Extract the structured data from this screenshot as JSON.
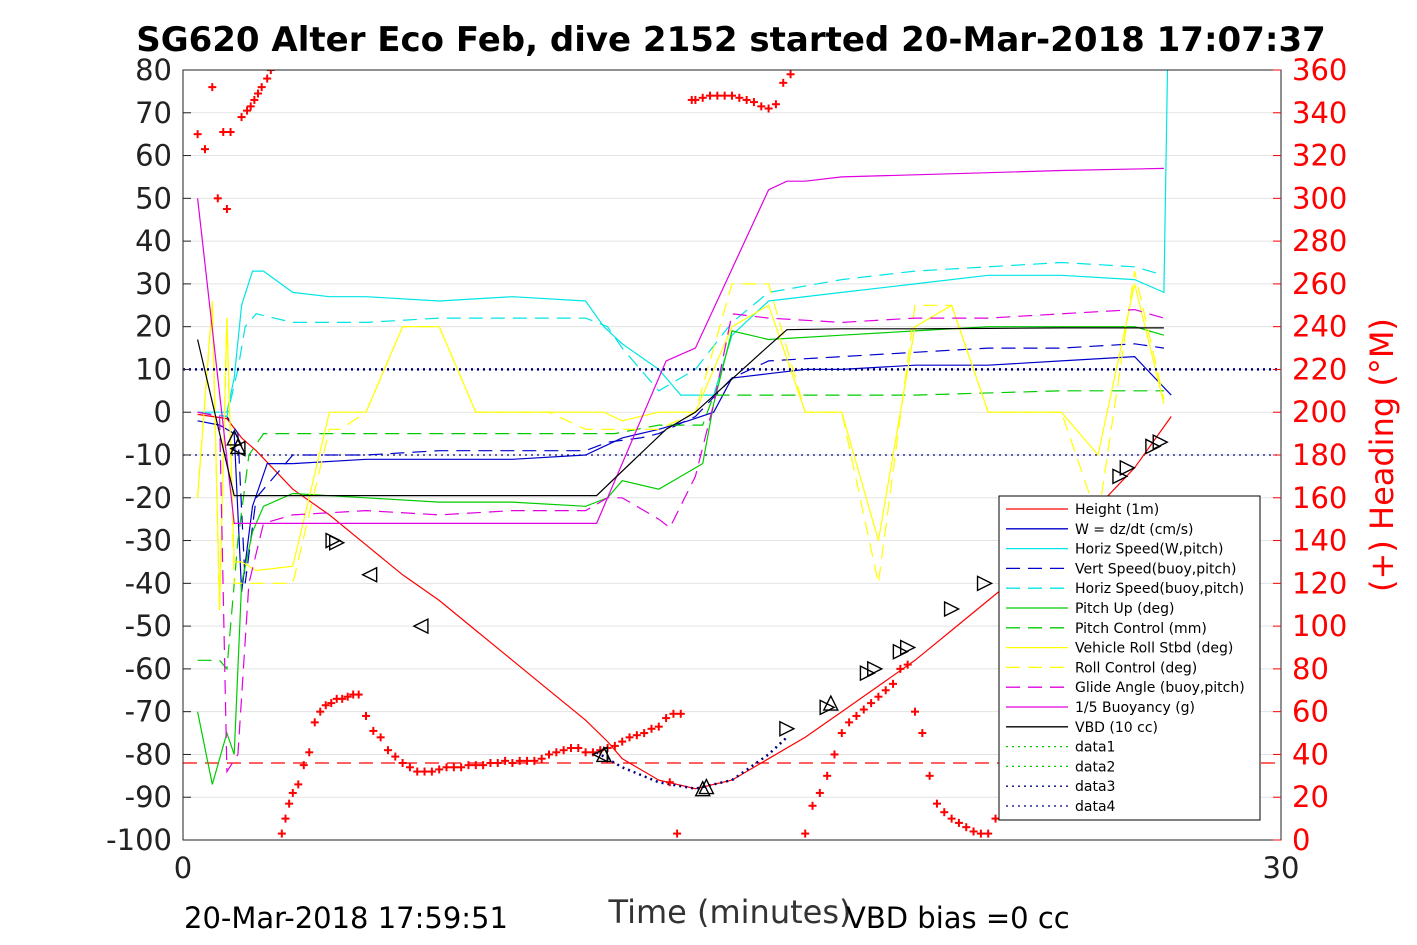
{
  "chart_data": {
    "type": "line",
    "title": "SG620 Alter Eco Feb, dive 2152 started 20-Mar-2018 17:07:37",
    "xlabel": "Time (minutes)",
    "ylabel": "",
    "y2label": "(+) Heading (°M)",
    "xlim": [
      0,
      30
    ],
    "ylim": [
      -100,
      80
    ],
    "y2lim": [
      0,
      360
    ],
    "x_ticks": [
      "0",
      "30"
    ],
    "y_ticks": [
      "80",
      "70",
      "60",
      "50",
      "40",
      "30",
      "20",
      "10",
      "0",
      "-10",
      "-20",
      "-30",
      "-40",
      "-50",
      "-60",
      "-70",
      "-80",
      "-90",
      "-100"
    ],
    "y2_ticks": [
      "360",
      "340",
      "320",
      "300",
      "280",
      "260",
      "240",
      "220",
      "200",
      "180",
      "160",
      "140",
      "120",
      "100",
      "80",
      "60",
      "40",
      "20",
      "0"
    ],
    "grid": "y-major",
    "legend_position": "lower-right",
    "footer_left": "20-Mar-2018 17:59:51",
    "footer_right": "VBD bias =0 cc",
    "colors": {
      "red": "#ff0000",
      "blue": "#0000cc",
      "cyan": "#00e5e5",
      "green": "#00cc00",
      "yellow": "#ffff00",
      "magenta": "#e000e0",
      "black": "#000000"
    },
    "series": [
      {
        "name": "Height (1m)",
        "color": "#ff0000",
        "style": "solid",
        "x": [
          0.4,
          1.2,
          1.6,
          2.0,
          3.0,
          4.0,
          5.0,
          6.0,
          7.0,
          8.0,
          9.0,
          10.0,
          11.0,
          11.6,
          12.0,
          13.0,
          14.0,
          15.0,
          16.0,
          17.0,
          18.0,
          19.0,
          20.0,
          21.0,
          22.0,
          23.0,
          24.0,
          25.0,
          26.0,
          27.0
        ],
        "y": [
          -0.5,
          -1.5,
          -6,
          -9,
          -18,
          -24,
          -31,
          -38,
          -44,
          -51,
          -58,
          -65,
          -72,
          -77,
          -81,
          -86,
          -88,
          -86,
          -81,
          -76,
          -70,
          -64,
          -58,
          -51,
          -44,
          -37,
          -30,
          -22,
          -13,
          -1
        ]
      },
      {
        "name": "W = dz/dt (cm/s)",
        "color": "#0000cc",
        "style": "solid",
        "x": [
          0.4,
          1.0,
          1.4,
          1.6,
          1.9,
          2.3,
          3.0,
          5.0,
          7.0,
          9.0,
          11.0,
          11.5,
          12.0,
          13.0,
          13.8,
          14.5,
          15.0,
          16.0,
          17.0,
          18.0,
          20.0,
          22.0,
          24.0,
          26.0,
          27.0
        ],
        "y": [
          -2,
          -3,
          -5,
          -42,
          -22,
          -12,
          -12,
          -11,
          -11,
          -11,
          -10,
          -8,
          -6,
          -4,
          -2,
          0,
          8,
          9,
          10,
          10,
          11,
          11,
          12,
          13,
          4
        ]
      },
      {
        "name": "Horiz Speed(W,pitch)",
        "color": "#00e5e5",
        "style": "solid",
        "x": [
          0.4,
          1.2,
          1.4,
          1.6,
          1.9,
          2.2,
          3.0,
          4.0,
          5.0,
          7.0,
          9.0,
          11.0,
          11.5,
          12.0,
          13.0,
          13.6,
          14.5,
          15.0,
          16.0,
          18.0,
          20.0,
          22.0,
          24.0,
          26.0,
          26.8,
          26.9
        ],
        "y": [
          0,
          0,
          8,
          25,
          33,
          33,
          28,
          27,
          27,
          26,
          27,
          26,
          20,
          16,
          10,
          4,
          4,
          18,
          26,
          28,
          30,
          32,
          32,
          31,
          28,
          80
        ]
      },
      {
        "name": "Vert Speed(buoy,pitch)",
        "color": "#0000cc",
        "style": "dashed",
        "x": [
          0.4,
          1.2,
          1.5,
          1.7,
          2.0,
          3.0,
          5.0,
          7.0,
          9.0,
          11.0,
          11.6,
          12.5,
          13.0,
          14.0,
          15.0,
          16.0,
          18.0,
          20.0,
          22.0,
          24.0,
          26.0,
          26.8
        ],
        "y": [
          0,
          -1,
          -5,
          -40,
          -20,
          -10,
          -10,
          -9,
          -9,
          -9,
          -7,
          -6,
          -5,
          -1,
          8,
          12,
          13,
          14,
          15,
          15,
          16,
          15
        ]
      },
      {
        "name": "Horiz Speed(buoy,pitch)",
        "color": "#00e5e5",
        "style": "dashed",
        "x": [
          0.4,
          1.2,
          1.5,
          1.7,
          2.0,
          3.0,
          5.0,
          7.0,
          9.0,
          11.0,
          11.6,
          12.0,
          13.0,
          14.0,
          15.0,
          16.0,
          18.0,
          20.0,
          22.0,
          24.0,
          26.0,
          26.8
        ],
        "y": [
          0,
          -1,
          10,
          20,
          23,
          21,
          21,
          22,
          22,
          22,
          20,
          15,
          5,
          10,
          21,
          28,
          31,
          33,
          34,
          35,
          34,
          32
        ]
      },
      {
        "name": "Pitch Up (deg)",
        "color": "#00cc00",
        "style": "solid",
        "x": [
          0.4,
          0.8,
          1.2,
          1.4,
          1.6,
          1.9,
          2.2,
          3.0,
          5.0,
          7.0,
          9.0,
          11.0,
          11.6,
          12.0,
          13.0,
          13.6,
          14.2,
          14.5,
          15.0,
          16.0,
          18.0,
          20.0,
          22.0,
          24.0,
          26.0,
          26.8
        ],
        "y": [
          -70,
          -87,
          -75,
          -80,
          -40,
          -28,
          -22,
          -19,
          -20,
          -21,
          -21,
          -22,
          -20,
          -16,
          -18,
          -15,
          -12,
          2,
          19,
          17,
          18,
          19,
          20,
          20,
          20,
          18
        ]
      },
      {
        "name": "Pitch Control (mm)",
        "color": "#00cc00",
        "style": "dashed",
        "x": [
          0.4,
          1.0,
          1.2,
          1.5,
          1.8,
          2.2,
          3.0,
          6.0,
          9.0,
          11.0,
          11.8,
          13.0,
          14.2,
          14.5,
          16.0,
          20.0,
          24.0,
          26.8
        ],
        "y": [
          -58,
          -58,
          -60,
          -30,
          -10,
          -5,
          -5,
          -5,
          -5,
          -5,
          -5,
          -3,
          -3,
          4,
          4,
          4,
          5,
          5
        ]
      },
      {
        "name": "Vehicle Roll Stbd (deg)",
        "color": "#ffff00",
        "style": "solid",
        "x": [
          0.4,
          0.8,
          1.0,
          1.2,
          1.4,
          1.6,
          2.0,
          3.0,
          4.0,
          4.3,
          5.0,
          6.0,
          7.0,
          8.0,
          9.0,
          10.0,
          11.0,
          11.5,
          12.0,
          13.0,
          14.0,
          15.0,
          16.0,
          17.0,
          18.0,
          19.0,
          20.0,
          21.0,
          22.0,
          23.0,
          24.0,
          25.0,
          26.0,
          26.8
        ],
        "y": [
          -20,
          26,
          -45,
          22,
          -35,
          -35,
          -37,
          -36,
          0,
          0,
          0,
          20,
          20,
          0,
          0,
          0,
          0,
          0,
          -2,
          0,
          0,
          20,
          25,
          0,
          0,
          -30,
          20,
          25,
          0,
          0,
          0,
          -10,
          30,
          2
        ]
      },
      {
        "name": "Roll Control (deg)",
        "color": "#ffff00",
        "style": "dashed",
        "x": [
          0.4,
          0.8,
          1.0,
          1.2,
          1.4,
          1.6,
          2.0,
          3.0,
          4.0,
          4.3,
          5.0,
          6.0,
          7.0,
          8.0,
          9.0,
          10.0,
          11.0,
          12.0,
          13.0,
          14.0,
          15.0,
          16.0,
          17.0,
          18.0,
          19.0,
          20.0,
          21.0,
          22.0,
          23.0,
          24.0,
          25.0,
          26.0,
          26.8
        ],
        "y": [
          -20,
          25,
          -47,
          22,
          -40,
          -40,
          -40,
          -40,
          -4,
          -4,
          0,
          20,
          20,
          0,
          0,
          0,
          -4,
          -4,
          -4,
          0,
          30,
          30,
          0,
          0,
          -40,
          25,
          25,
          0,
          0,
          0,
          -25,
          33,
          3
        ]
      },
      {
        "name": "Glide Angle (buoy,pitch)",
        "color": "#e000e0",
        "style": "dashed",
        "x": [
          0.4,
          1.0,
          1.2,
          1.5,
          1.8,
          2.2,
          3.0,
          5.0,
          7.0,
          9.0,
          11.0,
          11.6,
          12.0,
          13.0,
          13.3,
          14.0,
          14.5,
          15.0,
          16.0,
          18.0,
          20.0,
          22.0,
          24.0,
          26.0,
          26.8
        ],
        "y": [
          0,
          -1,
          -84,
          -80,
          -40,
          -26,
          -24,
          -23,
          -24,
          -23,
          -23,
          -20,
          -20,
          -25,
          -27,
          -15,
          2,
          23,
          22,
          21,
          22,
          22,
          23,
          24,
          22
        ]
      },
      {
        "name": "1/5 Buoyancy (g)",
        "color": "#e000e0",
        "style": "solid",
        "x": [
          0.4,
          1.4,
          1.5,
          2.0,
          4.0,
          6.0,
          8.0,
          10.0,
          11.3,
          13.2,
          14.0,
          16.0,
          16.5,
          17.0,
          18.0,
          20.0,
          22.0,
          24.0,
          26.8
        ],
        "y": [
          50,
          -26,
          -26,
          -26,
          -26,
          -26,
          -26,
          -26,
          -26,
          12,
          15,
          52,
          54,
          54,
          55,
          55.5,
          56,
          56.5,
          57
        ]
      },
      {
        "name": "VBD (10 cc)",
        "color": "#000000",
        "style": "solid",
        "x": [
          0.4,
          1.4,
          1.5,
          4.0,
          6.0,
          8.0,
          11.3,
          13.2,
          14.0,
          16.0,
          16.5,
          18.0,
          20.0,
          22.0,
          24.0,
          26.8
        ],
        "y": [
          17,
          -19.5,
          -19.5,
          -19.5,
          -19.5,
          -19.5,
          -19.5,
          -4,
          0,
          15.5,
          19.3,
          19.5,
          19.5,
          19.6,
          19.7,
          19.7
        ]
      },
      {
        "name": "data1",
        "color": "#00cc00",
        "style": "dotted",
        "x": [],
        "y": []
      },
      {
        "name": "data2",
        "color": "#00cc00",
        "style": "dotted",
        "x": [],
        "y": []
      },
      {
        "name": "data3",
        "color": "#000080",
        "style": "dotted",
        "x": [
          11.3,
          12.0,
          13.0,
          14.0,
          15.0,
          16.0,
          16.5
        ],
        "y": [
          -79.5,
          -83,
          -86.5,
          -88,
          -86,
          -80,
          -76
        ]
      },
      {
        "name": "data4",
        "color": "#000080",
        "style": "dotted",
        "x": [
          -10,
          40
        ],
        "y": [
          10,
          10
        ]
      }
    ],
    "extra_lines": [
      {
        "color": "#000080",
        "style": "dotted",
        "y": -10
      },
      {
        "color": "#ff0000",
        "style": "dashed",
        "y": -82
      }
    ],
    "heading_points": {
      "color": "#ff0000",
      "x": [
        0.4,
        0.6,
        0.8,
        0.95,
        1.1,
        1.2,
        1.3,
        1.6,
        1.75,
        1.85,
        1.95,
        2.05,
        2.15,
        2.3,
        2.4,
        2.5,
        2.7,
        2.8,
        2.9,
        3.0,
        3.15,
        3.3,
        3.45,
        3.6,
        3.75,
        3.9,
        4.05,
        4.2,
        4.35,
        4.5,
        4.65,
        4.8,
        5.0,
        5.2,
        5.4,
        5.6,
        5.8,
        6.0,
        6.2,
        6.4,
        6.6,
        6.8,
        7.0,
        7.2,
        7.4,
        7.6,
        7.8,
        8.0,
        8.2,
        8.4,
        8.6,
        8.8,
        9.0,
        9.2,
        9.4,
        9.6,
        9.8,
        10.0,
        10.2,
        10.4,
        10.6,
        10.8,
        11.0,
        11.2,
        11.4,
        11.6,
        11.8,
        12.0,
        12.2,
        12.4,
        12.6,
        12.8,
        13.0,
        13.2,
        13.4,
        13.6,
        13.9,
        14.0,
        14.2,
        14.4,
        14.6,
        14.8,
        15.0,
        15.2,
        15.4,
        15.6,
        15.8,
        16.0,
        16.2,
        16.4,
        16.6,
        16.8,
        13.3,
        13.5,
        17.0,
        17.2,
        17.4,
        17.6,
        17.8,
        18.0,
        18.2,
        18.4,
        18.6,
        18.8,
        19.0,
        19.2,
        19.4,
        19.6,
        19.8,
        20.0,
        20.2,
        20.4,
        20.6,
        20.8,
        21.0,
        21.2,
        21.4,
        21.6,
        21.8,
        22.0,
        22.2,
        22.4,
        22.6,
        22.8,
        23.0,
        23.2,
        23.4,
        23.6,
        23.8,
        24.0,
        24.2,
        24.4,
        24.6,
        24.8,
        25.0,
        25.2,
        25.4,
        25.6,
        25.8
      ],
      "y": [
        330,
        323,
        352,
        300,
        331,
        295,
        331,
        338,
        341,
        343,
        346,
        349,
        352,
        356,
        360,
        362,
        3,
        10,
        17,
        22,
        26,
        35,
        41,
        55,
        60,
        63,
        64,
        66,
        66,
        67,
        68,
        68,
        58,
        51,
        48,
        42,
        39,
        36,
        34,
        32,
        32,
        32,
        33,
        34,
        34,
        34,
        35,
        35,
        35,
        36,
        36,
        37,
        36,
        37,
        37,
        37,
        38,
        40,
        41,
        42,
        43,
        43,
        41,
        41,
        42,
        43,
        44,
        46,
        48,
        49,
        50,
        52,
        53,
        57,
        59,
        59,
        346,
        346,
        347,
        348,
        348,
        348,
        348,
        347,
        346,
        345,
        343,
        342,
        344,
        354,
        358,
        362,
        27,
        3,
        3,
        16,
        22,
        30,
        40,
        50,
        55,
        58,
        61,
        64,
        67,
        70,
        73,
        80,
        82,
        60,
        50,
        30,
        17,
        13,
        10,
        8,
        6,
        4,
        3,
        3,
        10,
        20,
        30,
        40,
        55,
        65,
        72,
        75,
        76,
        77,
        78,
        80,
        82,
        84,
        86,
        80,
        70,
        60,
        50
      ]
    },
    "triangle_markers": {
      "color": "#000000",
      "x": [
        1.4,
        1.5,
        1.5,
        4.1,
        4.2,
        5.1,
        6.5,
        11.4,
        11.5,
        14.2,
        14.3,
        16.5,
        17.6,
        17.7,
        18.7,
        18.9,
        19.6,
        19.8,
        21.0,
        21.9,
        25.6,
        25.8,
        26.5,
        26.7
      ],
      "y": [
        -6,
        -8,
        -8.5,
        -30,
        -30.5,
        -38,
        -50,
        -80,
        -80,
        -88,
        -87.5,
        -74,
        -69,
        -68,
        -61,
        -60,
        -56,
        -55,
        -46,
        -40,
        -15,
        -13,
        -8,
        -7
      ],
      "dirs": [
        "up",
        "up",
        "left",
        "right",
        "right",
        "left",
        "left",
        "left",
        "up",
        "up",
        "up",
        "right",
        "right",
        "up",
        "right",
        "right",
        "right",
        "right",
        "right",
        "right",
        "right",
        "right",
        "right",
        "right"
      ]
    }
  }
}
